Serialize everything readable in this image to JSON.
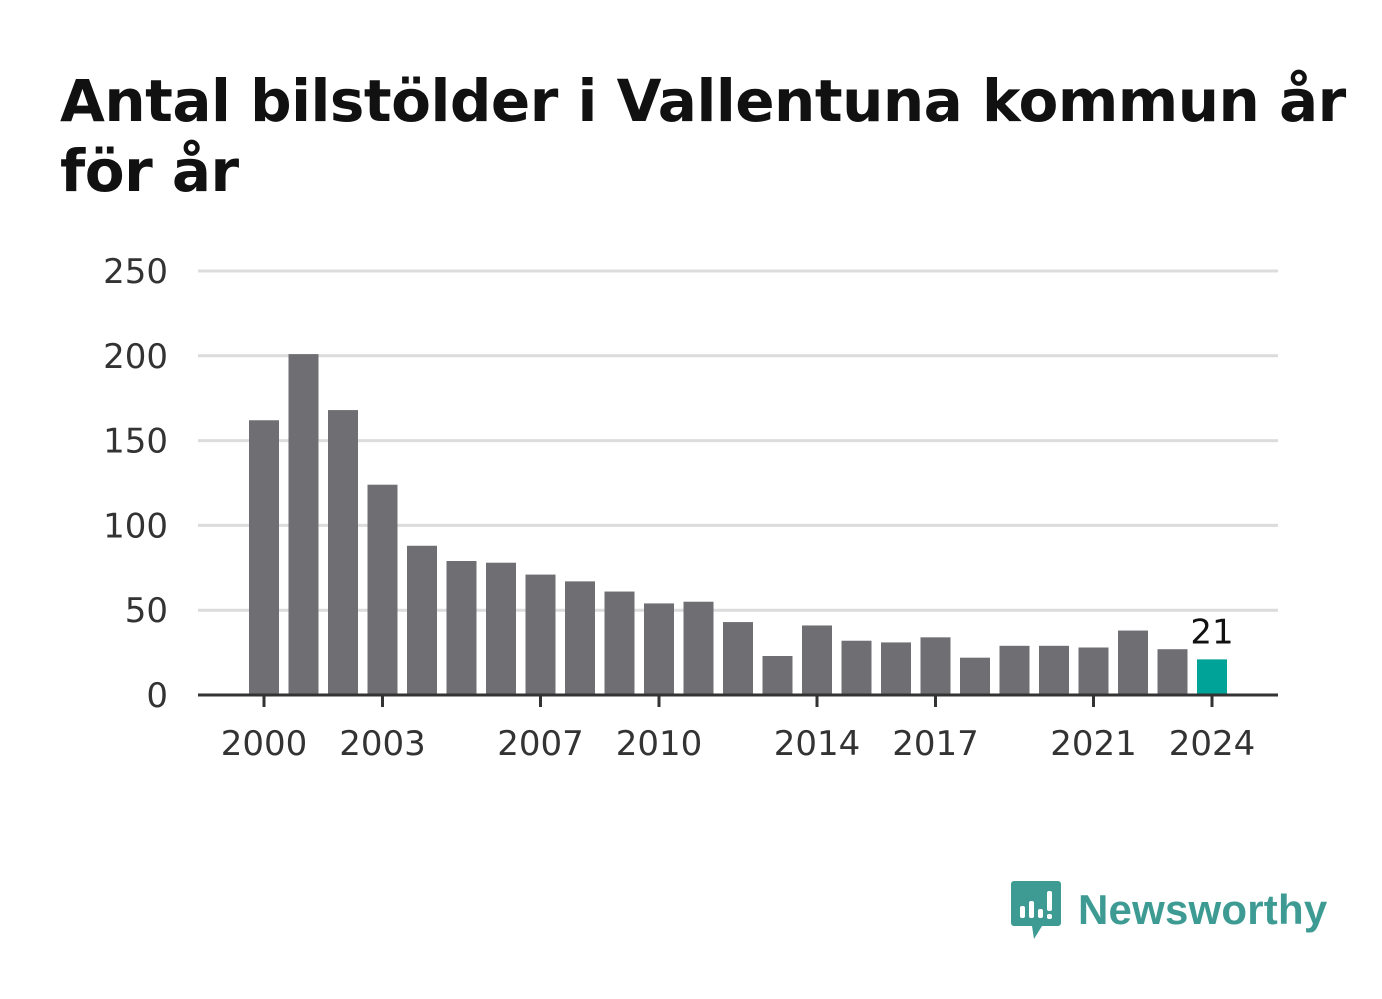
{
  "chart_data": {
    "type": "bar",
    "title": "Antal bilstölder i Vallentuna kommun år för år",
    "xlabel": "",
    "ylabel": "",
    "categories": [
      2000,
      2001,
      2002,
      2003,
      2004,
      2005,
      2006,
      2007,
      2008,
      2009,
      2010,
      2011,
      2012,
      2013,
      2014,
      2015,
      2016,
      2017,
      2018,
      2019,
      2020,
      2021,
      2022,
      2023,
      2024
    ],
    "values": [
      162,
      201,
      168,
      124,
      88,
      79,
      78,
      71,
      67,
      61,
      54,
      55,
      43,
      23,
      41,
      32,
      31,
      34,
      22,
      29,
      29,
      28,
      38,
      27,
      21
    ],
    "ylim": [
      0,
      250
    ],
    "y_ticks": [
      0,
      50,
      100,
      150,
      200,
      250
    ],
    "x_tick_labels": [
      2000,
      2003,
      2007,
      2010,
      2014,
      2017,
      2021,
      2024
    ],
    "highlight": {
      "category": 2024,
      "label": "21"
    },
    "grid": true,
    "colors": {
      "bar": "#6f6e73",
      "highlight": "#00a397",
      "grid": "#dcdcdc",
      "axis": "#333333"
    }
  },
  "brand": {
    "name": "Newsworthy",
    "icon": "newsworthy-logo-icon",
    "color": "#3d9b93"
  }
}
